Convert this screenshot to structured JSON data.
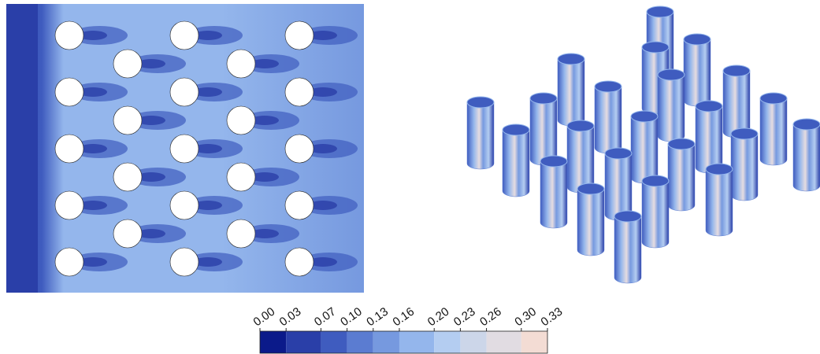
{
  "colorbar": {
    "ticks": [
      {
        "value": 0.0,
        "label": "0.00"
      },
      {
        "value": 0.03,
        "label": "0.03"
      },
      {
        "value": 0.07,
        "label": "0.07"
      },
      {
        "value": 0.1,
        "label": "0.10"
      },
      {
        "value": 0.13,
        "label": "0.13"
      },
      {
        "value": 0.16,
        "label": "0.16"
      },
      {
        "value": 0.2,
        "label": "0.20"
      },
      {
        "value": 0.23,
        "label": "0.23"
      },
      {
        "value": 0.26,
        "label": "0.26"
      },
      {
        "value": 0.3,
        "label": "0.30"
      },
      {
        "value": 0.33,
        "label": "0.33"
      }
    ],
    "colors": [
      "#0b1a8a",
      "#2a3fa8",
      "#3f5cbf",
      "#5b7cd1",
      "#7699df",
      "#94b6ec",
      "#b4cdf1",
      "#ccd6e9",
      "#e1dce2",
      "#f3dcd4"
    ]
  }
}
